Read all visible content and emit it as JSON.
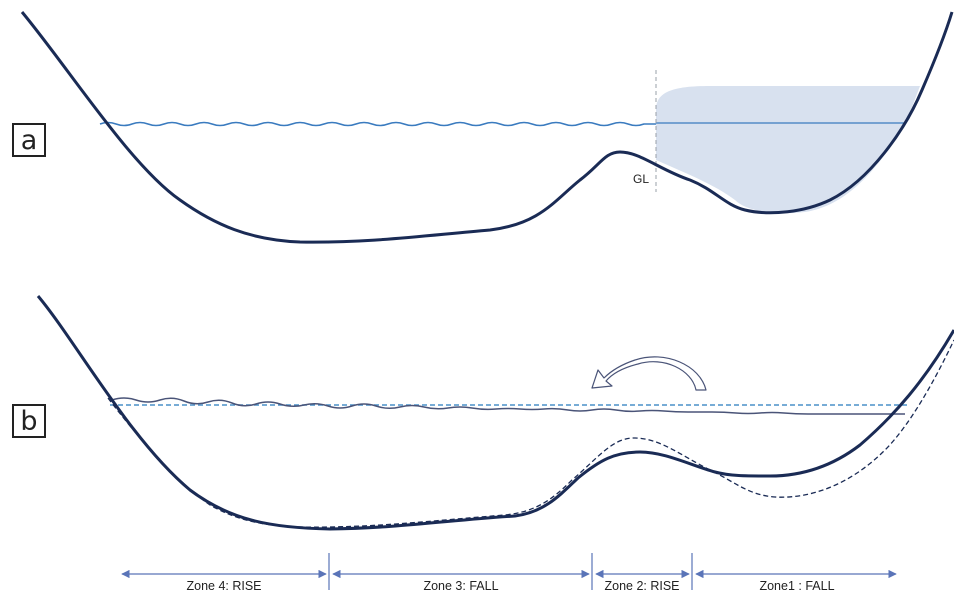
{
  "panels": {
    "a": {
      "label": "a",
      "grounding_line_label": "GL"
    },
    "b": {
      "label": "b"
    }
  },
  "zones": [
    {
      "label": "Zone 4: RISE"
    },
    {
      "label": "Zone 3: FALL"
    },
    {
      "label": "Zone 2: RISE"
    },
    {
      "label": "Zone1 : FALL"
    }
  ],
  "colors": {
    "bed": "#1a2b55",
    "water": "#3a7bbf",
    "ice": "#d8e1ef",
    "zone_arrow": "#5a74b8",
    "wavy_level": "#4a5478",
    "dashed_level": "#4a90c8"
  }
}
